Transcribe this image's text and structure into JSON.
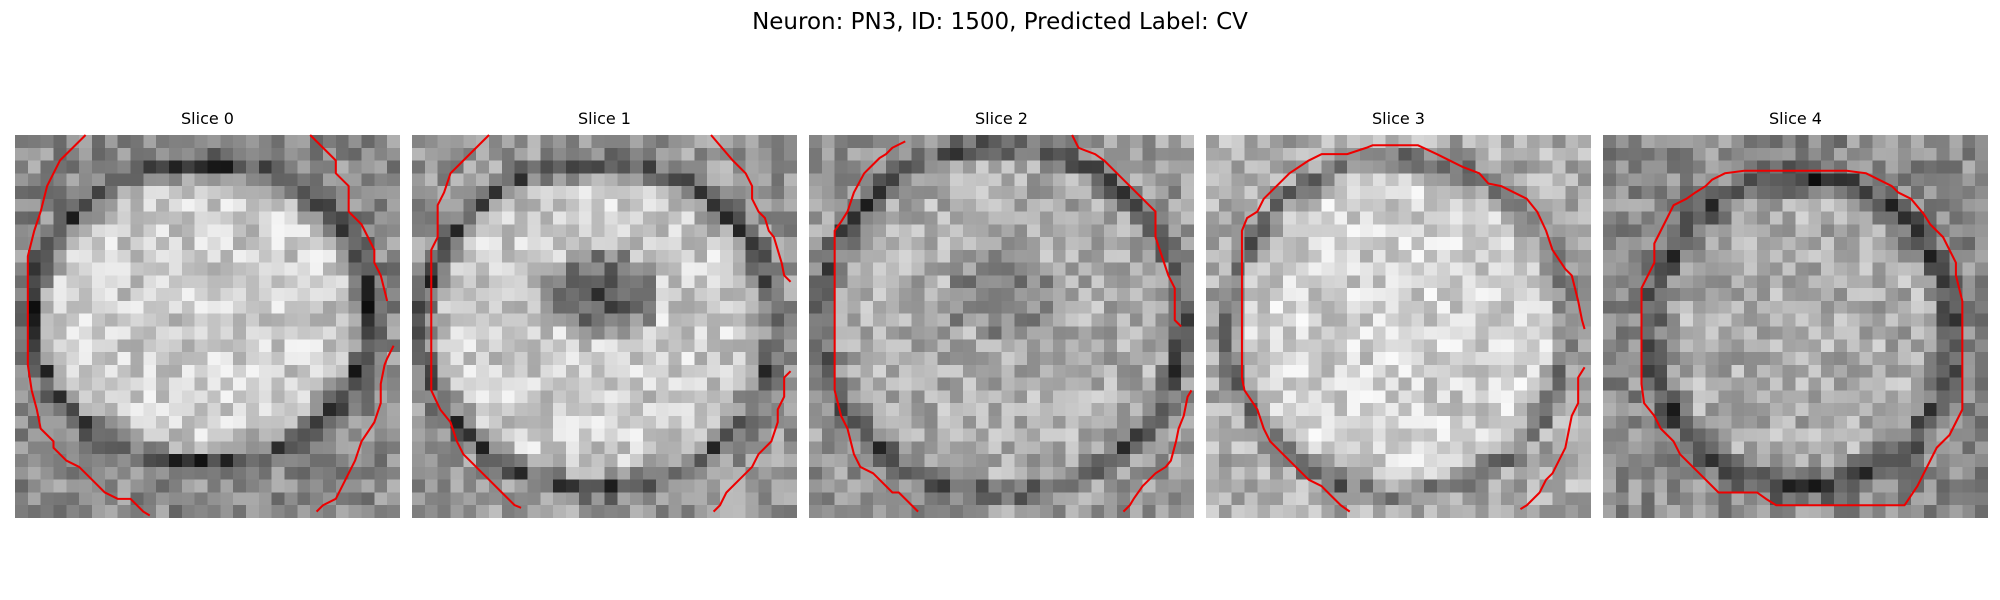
{
  "figure": {
    "title": "Neuron: PN3, ID: 1500, Predicted Label: CV"
  },
  "panels": [
    {
      "title": "Slice 0"
    },
    {
      "title": "Slice 1"
    },
    {
      "title": "Slice 2"
    },
    {
      "title": "Slice 3"
    },
    {
      "title": "Slice 4"
    }
  ],
  "colors": {
    "contour": "#ee0000",
    "background": "#ffffff"
  }
}
